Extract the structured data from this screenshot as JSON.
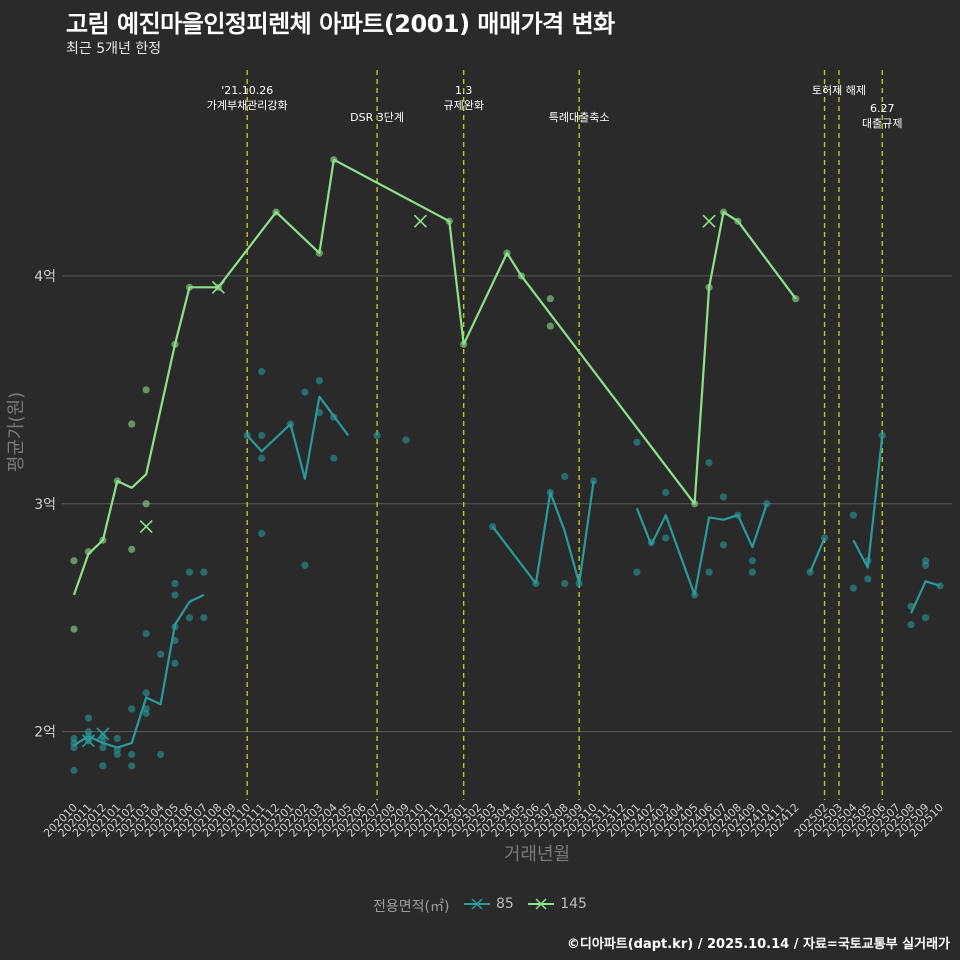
{
  "title": "고림 예진마을인정피렌체 아파트(2001) 매매가격 변화",
  "subtitle": "최근 5개년 한정",
  "caption": "©디아파트(dapt.kr) / 2025.10.14 / 자료=국토교통부 실거래가",
  "legend": {
    "title": "전용면적(㎡)",
    "items": [
      "85",
      "145"
    ]
  },
  "colors": {
    "background": "#2a2a2b",
    "grid": "#5a5a5a",
    "series_85": "#2a9a9a",
    "series_145": "#8fe08a",
    "event_line": "#c8d21a",
    "marker": "#ffffff"
  },
  "chart_data": {
    "type": "line",
    "xlabel": "거래년월",
    "ylabel": "평균가(원)",
    "ylim": [
      1.7,
      4.93
    ],
    "yticks": [
      2,
      3,
      4
    ],
    "ytick_labels": [
      "2억",
      "3억",
      "4억"
    ],
    "x_categories": [
      "202010",
      "202011",
      "202012",
      "202101",
      "202102",
      "202103",
      "202104",
      "202105",
      "202106",
      "202107",
      "202108",
      "202109",
      "202110",
      "202111",
      "202112",
      "202201",
      "202202",
      "202203",
      "202204",
      "202205",
      "202206",
      "202207",
      "202208",
      "202209",
      "202210",
      "202211",
      "202212",
      "202301",
      "202302",
      "202303",
      "202304",
      "202305",
      "202306",
      "202307",
      "202308",
      "202309",
      "202310",
      "202311",
      "202312",
      "202401",
      "202402",
      "202403",
      "202404",
      "202405",
      "202406",
      "202407",
      "202408",
      "202409",
      "202410",
      "202411",
      "202412",
      "202501",
      "202502",
      "202503",
      "202504",
      "202505",
      "202506",
      "202507",
      "202508",
      "202509",
      "202510"
    ],
    "x_tick_labels": [
      "202010",
      "202011",
      "202012",
      "202101",
      "202102",
      "202103",
      "202104",
      "202105",
      "202106",
      "202107",
      "202108",
      "202109",
      "202110",
      "202111",
      "202112",
      "202201",
      "202202",
      "202203",
      "202204",
      "202205",
      "202206",
      "202207",
      "202208",
      "202209",
      "202210",
      "202211",
      "202212",
      "202301",
      "202302",
      "202303",
      "202304",
      "202305",
      "202306",
      "202307",
      "202308",
      "202309",
      "202310",
      "202311",
      "202312",
      "202401",
      "202402",
      "202403",
      "202404",
      "202405",
      "202406",
      "202407",
      "202408",
      "202409",
      "202410",
      "202411",
      "202412",
      "202502",
      "202503",
      "202504",
      "202505",
      "202506",
      "202507",
      "202508",
      "202509",
      "202510"
    ],
    "x_tick_index": [
      0,
      1,
      2,
      3,
      4,
      5,
      6,
      7,
      8,
      9,
      10,
      11,
      12,
      13,
      14,
      15,
      16,
      17,
      18,
      19,
      20,
      21,
      22,
      23,
      24,
      25,
      26,
      27,
      28,
      29,
      30,
      31,
      32,
      33,
      34,
      35,
      36,
      37,
      38,
      39,
      40,
      41,
      42,
      43,
      44,
      45,
      46,
      47,
      48,
      49,
      50,
      52,
      53,
      54,
      55,
      56,
      57,
      58,
      59,
      60
    ],
    "events": [
      {
        "x": 12.0,
        "lines": [
          "'21.10.26",
          "가계부채관리강화"
        ],
        "level": 0
      },
      {
        "x": 21.0,
        "lines": [
          "DSR 3단계"
        ],
        "level": 1
      },
      {
        "x": 27.0,
        "lines": [
          "1.3",
          "규제완화"
        ],
        "level": 0
      },
      {
        "x": 35.0,
        "lines": [
          "특례대출축소"
        ],
        "level": 1
      },
      {
        "x": 52.0,
        "lines": [],
        "level": 0
      },
      {
        "x": 53.0,
        "lines": [
          "토허제 해제"
        ],
        "level": 0
      },
      {
        "x": 56.0,
        "lines": [
          "6.27",
          "대출규제"
        ],
        "level": 2
      }
    ],
    "series": [
      {
        "name": "85",
        "color": "#2a9a9a",
        "line_segments": [
          [
            [
              0,
              1.94
            ],
            [
              1,
              1.98
            ],
            [
              2,
              1.95
            ],
            [
              3,
              1.93
            ],
            [
              4,
              1.95
            ],
            [
              5,
              2.15
            ],
            [
              6,
              2.12
            ],
            [
              7,
              2.47
            ],
            [
              8,
              2.57
            ],
            [
              9,
              2.6
            ]
          ],
          [
            [
              12,
              3.3
            ],
            [
              13,
              3.23
            ],
            [
              15,
              3.35
            ],
            [
              16,
              3.11
            ],
            [
              17,
              3.47
            ],
            [
              19,
              3.3
            ]
          ],
          [
            [
              29,
              2.9
            ],
            [
              32,
              2.65
            ],
            [
              33,
              3.05
            ],
            [
              34,
              2.88
            ],
            [
              35,
              2.65
            ],
            [
              36,
              3.1
            ]
          ],
          [
            [
              39,
              2.98
            ],
            [
              40,
              2.82
            ],
            [
              41,
              2.95
            ],
            [
              43,
              2.6
            ],
            [
              44,
              2.94
            ],
            [
              45,
              2.93
            ],
            [
              46,
              2.95
            ],
            [
              47,
              2.81
            ],
            [
              48,
              3.0
            ]
          ],
          [
            [
              51,
              2.7
            ],
            [
              52,
              2.85
            ]
          ],
          [
            [
              54,
              2.84
            ],
            [
              55,
              2.72
            ],
            [
              56,
              3.3
            ]
          ],
          [
            [
              58,
              2.52
            ],
            [
              59,
              2.66
            ],
            [
              60,
              2.64
            ]
          ]
        ],
        "points": [
          [
            0,
            1.83
          ],
          [
            0,
            1.93
          ],
          [
            0,
            1.97
          ],
          [
            0,
            1.95
          ],
          [
            1,
            2.06
          ],
          [
            1,
            2.0
          ],
          [
            1,
            1.98
          ],
          [
            1,
            1.96
          ],
          [
            2,
            1.85
          ],
          [
            2,
            1.93
          ],
          [
            2,
            1.98
          ],
          [
            2,
            1.96
          ],
          [
            3,
            1.9
          ],
          [
            3,
            1.92
          ],
          [
            3,
            1.97
          ],
          [
            4,
            1.85
          ],
          [
            4,
            1.9
          ],
          [
            4,
            2.1
          ],
          [
            5,
            2.08
          ],
          [
            5,
            2.1
          ],
          [
            5,
            2.17
          ],
          [
            5,
            2.43
          ],
          [
            6,
            1.9
          ],
          [
            6,
            2.34
          ],
          [
            7,
            2.3
          ],
          [
            7,
            2.4
          ],
          [
            7,
            2.46
          ],
          [
            7,
            2.6
          ],
          [
            7,
            2.65
          ],
          [
            8,
            2.5
          ],
          [
            8,
            2.7
          ],
          [
            9,
            2.5
          ],
          [
            9,
            2.7
          ],
          [
            12,
            3.3
          ],
          [
            13,
            3.2
          ],
          [
            13,
            3.3
          ],
          [
            13,
            3.58
          ],
          [
            13,
            2.87
          ],
          [
            15,
            3.35
          ],
          [
            16,
            3.49
          ],
          [
            16,
            2.73
          ],
          [
            17,
            3.4
          ],
          [
            17,
            3.54
          ],
          [
            18,
            3.38
          ],
          [
            18,
            3.2
          ],
          [
            21,
            3.3
          ],
          [
            23,
            3.28
          ],
          [
            29,
            2.9
          ],
          [
            32,
            2.65
          ],
          [
            33,
            3.05
          ],
          [
            34,
            3.12
          ],
          [
            34,
            2.65
          ],
          [
            35,
            2.65
          ],
          [
            36,
            3.1
          ],
          [
            39,
            2.7
          ],
          [
            39,
            3.27
          ],
          [
            40,
            2.83
          ],
          [
            41,
            2.85
          ],
          [
            41,
            3.05
          ],
          [
            43,
            2.6
          ],
          [
            44,
            2.7
          ],
          [
            44,
            3.18
          ],
          [
            45,
            2.82
          ],
          [
            45,
            3.03
          ],
          [
            46,
            2.95
          ],
          [
            47,
            2.7
          ],
          [
            47,
            2.75
          ],
          [
            48,
            3.0
          ],
          [
            51,
            2.7
          ],
          [
            52,
            2.85
          ],
          [
            54,
            2.95
          ],
          [
            54,
            2.63
          ],
          [
            55,
            2.67
          ],
          [
            55,
            2.75
          ],
          [
            56,
            3.3
          ],
          [
            58,
            2.47
          ],
          [
            58,
            2.55
          ],
          [
            59,
            2.5
          ],
          [
            59,
            2.73
          ],
          [
            59,
            2.75
          ],
          [
            60,
            2.64
          ]
        ],
        "cancelled": [
          [
            1,
            1.96
          ],
          [
            2,
            1.99
          ]
        ]
      },
      {
        "name": "145",
        "color": "#8fe08a",
        "line_segments": [
          [
            [
              0,
              2.6
            ],
            [
              1,
              2.78
            ],
            [
              2,
              2.84
            ],
            [
              3,
              3.1
            ],
            [
              4,
              3.07
            ],
            [
              5,
              3.13
            ],
            [
              7,
              3.7
            ],
            [
              8,
              3.95
            ],
            [
              10,
              3.95
            ],
            [
              14,
              4.28
            ],
            [
              17,
              4.1
            ],
            [
              18,
              4.51
            ],
            [
              26,
              4.24
            ],
            [
              27,
              3.7
            ],
            [
              30,
              4.1
            ],
            [
              31,
              4.0
            ],
            [
              43,
              3.0
            ],
            [
              44,
              3.95
            ],
            [
              45,
              4.28
            ],
            [
              46,
              4.24
            ],
            [
              50,
              3.9
            ]
          ]
        ],
        "points": [
          [
            0,
            2.75
          ],
          [
            0,
            2.45
          ],
          [
            1,
            2.79
          ],
          [
            2,
            2.84
          ],
          [
            3,
            3.1
          ],
          [
            4,
            2.8
          ],
          [
            4,
            3.35
          ],
          [
            5,
            3.0
          ],
          [
            5,
            3.5
          ],
          [
            7,
            3.7
          ],
          [
            8,
            3.95
          ],
          [
            10,
            3.95
          ],
          [
            14,
            4.28
          ],
          [
            17,
            4.1
          ],
          [
            18,
            4.51
          ],
          [
            26,
            4.24
          ],
          [
            27,
            3.7
          ],
          [
            30,
            4.1
          ],
          [
            31,
            4.0
          ],
          [
            33,
            3.78
          ],
          [
            33,
            3.9
          ],
          [
            43,
            3.0
          ],
          [
            44,
            3.95
          ],
          [
            45,
            4.28
          ],
          [
            46,
            4.24
          ],
          [
            50,
            3.9
          ]
        ],
        "cancelled": [
          [
            5,
            2.9
          ],
          [
            10,
            3.95
          ],
          [
            24,
            4.24
          ],
          [
            44,
            4.24
          ]
        ]
      }
    ]
  }
}
